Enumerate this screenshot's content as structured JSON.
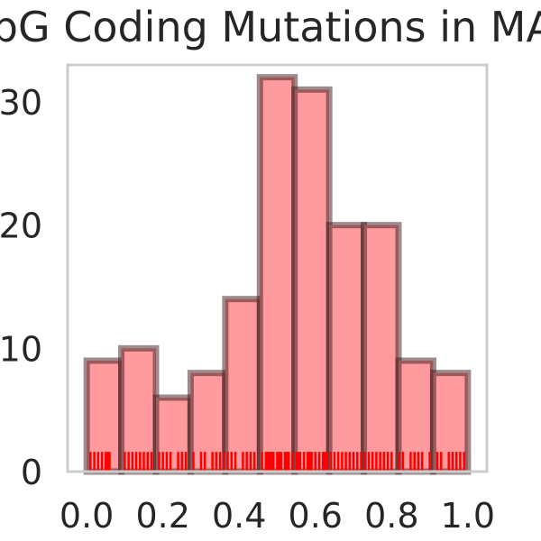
{
  "chart_data": {
    "type": "bar",
    "title": "CpG Coding Mutations in MAF",
    "xlabel": "",
    "ylabel": "",
    "xlim": [
      -0.05,
      1.05
    ],
    "ylim": [
      0,
      33
    ],
    "grid": false,
    "bins": [
      {
        "x0": 0.0,
        "x1": 0.0909,
        "count": 9
      },
      {
        "x0": 0.0909,
        "x1": 0.1818,
        "count": 10
      },
      {
        "x0": 0.1818,
        "x1": 0.2727,
        "count": 6
      },
      {
        "x0": 0.2727,
        "x1": 0.3636,
        "count": 8
      },
      {
        "x0": 0.3636,
        "x1": 0.4545,
        "count": 14
      },
      {
        "x0": 0.4545,
        "x1": 0.5455,
        "count": 32
      },
      {
        "x0": 0.5455,
        "x1": 0.6364,
        "count": 31
      },
      {
        "x0": 0.6364,
        "x1": 0.7273,
        "count": 20
      },
      {
        "x0": 0.7273,
        "x1": 0.8182,
        "count": 20
      },
      {
        "x0": 0.8182,
        "x1": 0.9091,
        "count": 9
      },
      {
        "x0": 0.9091,
        "x1": 1.0,
        "count": 8
      }
    ],
    "x_ticks": [
      "0.0",
      "0.2",
      "0.4",
      "0.6",
      "0.8",
      "1.0"
    ],
    "x_tick_values": [
      0.0,
      0.2,
      0.4,
      0.6,
      0.8,
      1.0
    ],
    "y_ticks": [
      "0",
      "10",
      "20",
      "30"
    ],
    "y_tick_values": [
      0,
      10,
      20,
      30
    ],
    "rug": [
      0.01,
      0.02,
      0.03,
      0.04,
      0.05,
      0.055,
      0.06,
      0.1,
      0.11,
      0.12,
      0.13,
      0.14,
      0.15,
      0.16,
      0.17,
      0.19,
      0.2,
      0.21,
      0.22,
      0.24,
      0.25,
      0.26,
      0.28,
      0.3,
      0.31,
      0.33,
      0.34,
      0.35,
      0.36,
      0.37,
      0.38,
      0.39,
      0.41,
      0.42,
      0.43,
      0.44,
      0.46,
      0.47,
      0.475,
      0.48,
      0.485,
      0.49,
      0.5,
      0.505,
      0.51,
      0.52,
      0.525,
      0.53,
      0.54,
      0.55,
      0.555,
      0.56,
      0.57,
      0.58,
      0.585,
      0.59,
      0.6,
      0.61,
      0.62,
      0.625,
      0.63,
      0.64,
      0.65,
      0.66,
      0.67,
      0.68,
      0.69,
      0.7,
      0.71,
      0.72,
      0.73,
      0.74,
      0.75,
      0.76,
      0.77,
      0.78,
      0.79,
      0.8,
      0.82,
      0.83,
      0.85,
      0.86,
      0.87,
      0.88,
      0.9,
      0.92,
      0.93,
      0.95,
      0.96,
      0.97,
      0.98,
      0.99
    ],
    "colors": {
      "bar_fill": "#ff9a9e",
      "bar_edge": "#3a1a1a",
      "rug": "#ff0000",
      "frame": "#cccccc",
      "text": "#262626"
    }
  }
}
